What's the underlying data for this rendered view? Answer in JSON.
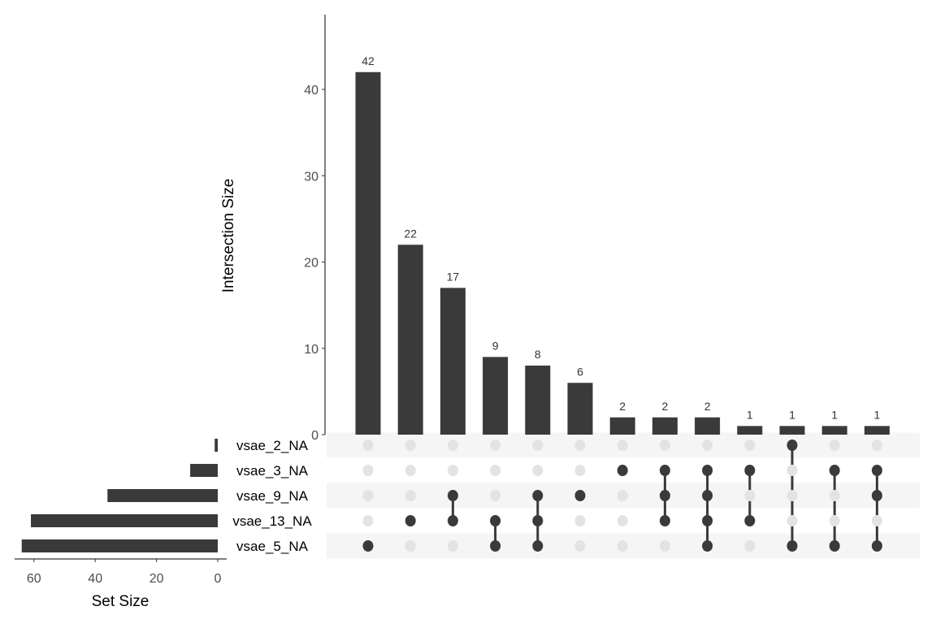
{
  "chart_data": {
    "type": "upset",
    "intersection_axis": {
      "label": "Intersection Size",
      "ylim": [
        0,
        48
      ],
      "ticks": [
        0,
        10,
        20,
        30,
        40
      ]
    },
    "set_size_axis": {
      "label": "Set Size",
      "xlim": [
        67,
        0
      ],
      "ticks": [
        60,
        40,
        20,
        0
      ]
    },
    "sets": [
      {
        "name": "vsae_2_NA",
        "size": 1
      },
      {
        "name": "vsae_3_NA",
        "size": 9
      },
      {
        "name": "vsae_9_NA",
        "size": 36
      },
      {
        "name": "vsae_13_NA",
        "size": 61
      },
      {
        "name": "vsae_5_NA",
        "size": 64
      }
    ],
    "intersections": [
      {
        "value": 42,
        "label": "42",
        "sets": [
          "vsae_5_NA"
        ]
      },
      {
        "value": 22,
        "label": "22",
        "sets": [
          "vsae_13_NA"
        ]
      },
      {
        "value": 17,
        "label": "17",
        "sets": [
          "vsae_9_NA",
          "vsae_13_NA"
        ]
      },
      {
        "value": 9,
        "label": "9",
        "sets": [
          "vsae_13_NA",
          "vsae_5_NA"
        ]
      },
      {
        "value": 8,
        "label": "8",
        "sets": [
          "vsae_9_NA",
          "vsae_13_NA",
          "vsae_5_NA"
        ]
      },
      {
        "value": 6,
        "label": "6",
        "sets": [
          "vsae_9_NA"
        ]
      },
      {
        "value": 2,
        "label": "2",
        "sets": [
          "vsae_3_NA"
        ]
      },
      {
        "value": 2,
        "label": "2",
        "sets": [
          "vsae_3_NA",
          "vsae_9_NA",
          "vsae_13_NA"
        ]
      },
      {
        "value": 2,
        "label": "2",
        "sets": [
          "vsae_3_NA",
          "vsae_9_NA",
          "vsae_13_NA",
          "vsae_5_NA"
        ]
      },
      {
        "value": 1,
        "label": "1",
        "sets": [
          "vsae_3_NA",
          "vsae_13_NA"
        ]
      },
      {
        "value": 1,
        "label": "1",
        "sets": [
          "vsae_2_NA",
          "vsae_5_NA"
        ]
      },
      {
        "value": 1,
        "label": "1",
        "sets": [
          "vsae_3_NA",
          "vsae_5_NA"
        ]
      },
      {
        "value": 1,
        "label": "1",
        "sets": [
          "vsae_3_NA",
          "vsae_9_NA",
          "vsae_5_NA"
        ]
      }
    ],
    "colors": {
      "bar": "#3a3a3a",
      "dot_inactive": "#e3e3e3",
      "stripe": "#f5f5f5",
      "axis_text": "#4d4d4d"
    }
  }
}
